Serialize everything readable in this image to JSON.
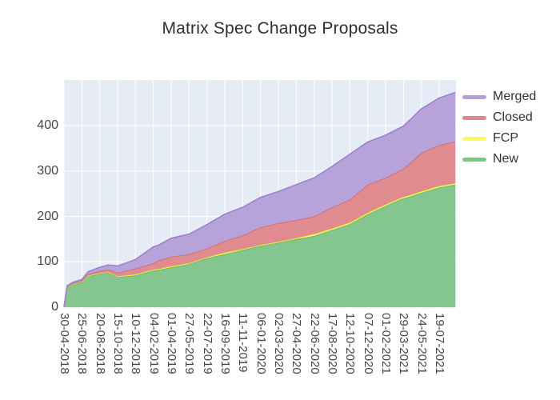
{
  "title": "Matrix Spec Change Proposals",
  "legend": {
    "items": [
      {
        "label": "Merged",
        "color": "#b4a0d7"
      },
      {
        "label": "Closed",
        "color": "#e0878c"
      },
      {
        "label": "FCP",
        "color": "#fdfa5f"
      },
      {
        "label": "New",
        "color": "#7cc487"
      }
    ]
  },
  "chart_data": {
    "type": "area",
    "stacked": true,
    "title": "Matrix Spec Change Proposals",
    "xlabel": "",
    "ylabel": "",
    "y_ticks": [
      0,
      100,
      200,
      300,
      400
    ],
    "y_range": [
      0,
      500
    ],
    "grid": true,
    "plot_bg": "#e5ecf6",
    "grid_color": "#ffffff",
    "legend_position": "right",
    "x_tick_labels": [
      "30-04-2018",
      "25-06-2018",
      "20-08-2018",
      "15-10-2018",
      "10-12-2018",
      "04-02-2019",
      "01-04-2019",
      "27-05-2019",
      "22-07-2019",
      "16-09-2019",
      "11-11-2019",
      "06-01-2020",
      "02-03-2020",
      "27-04-2020",
      "22-06-2020",
      "17-08-2020",
      "12-10-2020",
      "07-12-2020",
      "01-02-2021",
      "29-03-2021",
      "24-05-2021",
      "19-07-2021"
    ],
    "series_bottom_to_top": [
      "New",
      "FCP",
      "Closed",
      "Merged"
    ],
    "fill_colors": {
      "New": "#85c58f",
      "FCP": "#fcf968",
      "Closed": "#e08b8f",
      "Merged": "#b7a3da"
    },
    "stroke_colors": {
      "New": "#57b763",
      "FCP": "#f0eb30",
      "Closed": "#cb666e",
      "Merged": "#9a7dcb"
    },
    "samples_note": "pos is in x-tick index units (0 = first tick, 21 = last tick, 21.9 = right plot edge); values per series, stacked bottom-to-top",
    "samples": [
      {
        "pos": 0,
        "New": 1,
        "FCP": 0,
        "Closed": 0,
        "Merged": 0
      },
      {
        "pos": 0.18,
        "New": 45,
        "FCP": 0,
        "Closed": 1,
        "Merged": 1
      },
      {
        "pos": 0.5,
        "New": 50,
        "FCP": 1,
        "Closed": 2,
        "Merged": 2
      },
      {
        "pos": 1,
        "New": 55,
        "FCP": 1,
        "Closed": 2,
        "Merged": 3
      },
      {
        "pos": 1.35,
        "New": 68,
        "FCP": 1,
        "Closed": 4,
        "Merged": 5
      },
      {
        "pos": 2,
        "New": 74,
        "FCP": 1,
        "Closed": 5,
        "Merged": 8
      },
      {
        "pos": 2.5,
        "New": 76,
        "FCP": 1,
        "Closed": 6,
        "Merged": 10
      },
      {
        "pos": 3,
        "New": 66,
        "FCP": 2,
        "Closed": 8,
        "Merged": 15
      },
      {
        "pos": 4,
        "New": 70,
        "FCP": 2,
        "Closed": 13,
        "Merged": 20
      },
      {
        "pos": 5,
        "New": 81,
        "FCP": 2,
        "Closed": 14,
        "Merged": 36
      },
      {
        "pos": 5.3,
        "New": 82,
        "FCP": 2,
        "Closed": 19,
        "Merged": 34
      },
      {
        "pos": 6,
        "New": 88,
        "FCP": 2,
        "Closed": 21,
        "Merged": 41
      },
      {
        "pos": 7,
        "New": 95,
        "FCP": 2,
        "Closed": 20,
        "Merged": 44
      },
      {
        "pos": 8,
        "New": 108,
        "FCP": 2,
        "Closed": 19,
        "Merged": 53
      },
      {
        "pos": 9,
        "New": 117,
        "FCP": 3,
        "Closed": 26,
        "Merged": 59
      },
      {
        "pos": 10,
        "New": 126,
        "FCP": 2,
        "Closed": 30,
        "Merged": 62
      },
      {
        "pos": 11,
        "New": 135,
        "FCP": 2,
        "Closed": 39,
        "Merged": 66
      },
      {
        "pos": 12,
        "New": 142,
        "FCP": 2,
        "Closed": 41,
        "Merged": 70
      },
      {
        "pos": 13,
        "New": 150,
        "FCP": 2,
        "Closed": 40,
        "Merged": 78
      },
      {
        "pos": 14,
        "New": 157,
        "FCP": 4,
        "Closed": 39,
        "Merged": 85
      },
      {
        "pos": 15,
        "New": 170,
        "FCP": 3,
        "Closed": 47,
        "Merged": 90
      },
      {
        "pos": 16,
        "New": 183,
        "FCP": 3,
        "Closed": 51,
        "Merged": 100
      },
      {
        "pos": 17,
        "New": 205,
        "FCP": 3,
        "Closed": 62,
        "Merged": 94
      },
      {
        "pos": 18,
        "New": 223,
        "FCP": 3,
        "Closed": 59,
        "Merged": 94
      },
      {
        "pos": 19,
        "New": 240,
        "FCP": 3,
        "Closed": 62,
        "Merged": 94
      },
      {
        "pos": 19.4,
        "New": 244,
        "FCP": 3,
        "Closed": 72,
        "Merged": 95
      },
      {
        "pos": 20,
        "New": 252,
        "FCP": 3,
        "Closed": 85,
        "Merged": 97
      },
      {
        "pos": 21,
        "New": 264,
        "FCP": 3,
        "Closed": 90,
        "Merged": 104
      },
      {
        "pos": 21.9,
        "New": 270,
        "FCP": 3,
        "Closed": 92,
        "Merged": 108
      }
    ]
  }
}
